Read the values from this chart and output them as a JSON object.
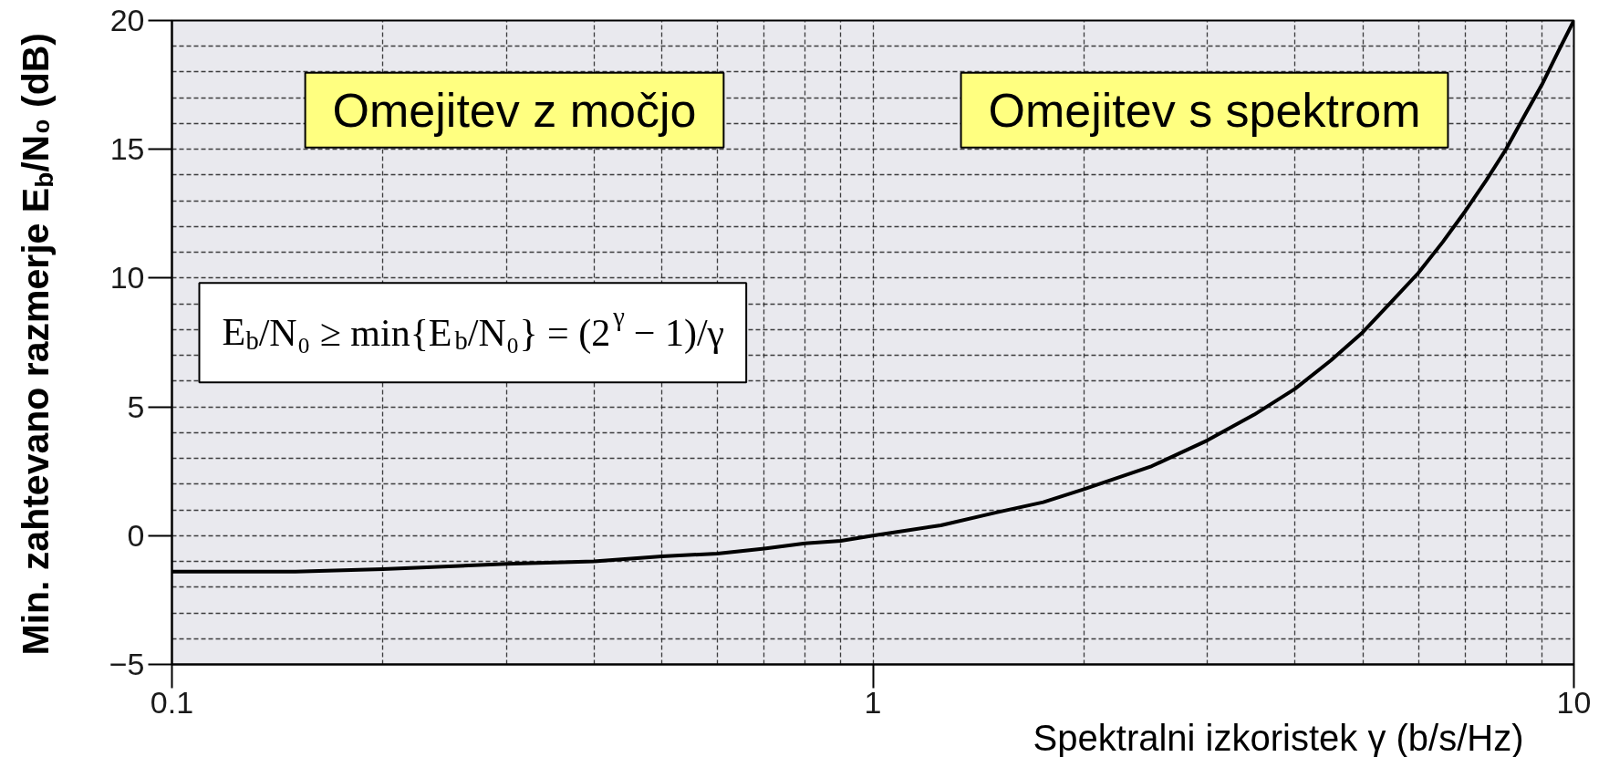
{
  "chart_data": {
    "type": "line",
    "xlabel": "Spektralni izkoristek γ (b/s/Hz)",
    "ylabel": "Min. zahtevano razmerje E$_{b}$/N₀ (dB)",
    "x": [
      0.1,
      0.15,
      0.2,
      0.3,
      0.4,
      0.5,
      0.6,
      0.7,
      0.8,
      0.9,
      1,
      1.25,
      1.5,
      1.75,
      2,
      2.5,
      3,
      3.5,
      4,
      4.5,
      5,
      5.5,
      6,
      6.5,
      7,
      7.5,
      8,
      8.5,
      9,
      9.5,
      10
    ],
    "series": [
      {
        "color": "#000000",
        "values": [
          -1.4,
          -1.4,
          -1.3,
          -1.1,
          -1.0,
          -0.8,
          -0.7,
          -0.5,
          -0.3,
          -0.2,
          0,
          0.4,
          0.9,
          1.3,
          1.8,
          2.7,
          3.7,
          4.7,
          5.7,
          6.8,
          7.9,
          9.1,
          10.2,
          11.4,
          12.6,
          13.8,
          15.0,
          16.3,
          17.5,
          18.8,
          20.0
        ]
      }
    ],
    "log": "x",
    "xlim": [
      0.1,
      10
    ],
    "xticks": [
      0.1,
      {
        "value": 0.2,
        "label": null
      },
      {
        "value": 0.3,
        "label": null
      },
      {
        "value": 0.4,
        "label": null
      },
      {
        "value": 0.5,
        "label": null
      },
      {
        "value": 0.6,
        "label": null
      },
      {
        "value": 0.7,
        "label": null
      },
      {
        "value": 0.8,
        "label": null
      },
      {
        "value": 0.9,
        "label": null
      },
      1,
      {
        "value": 2,
        "label": null
      },
      {
        "value": 3,
        "label": null
      },
      {
        "value": 4,
        "label": null
      },
      {
        "value": 5,
        "label": null
      },
      {
        "value": 6,
        "label": null
      },
      {
        "value": 7,
        "label": null
      },
      {
        "value": 8,
        "label": null
      },
      {
        "value": 9,
        "label": null
      },
      10
    ],
    "ylim": [
      -5,
      20
    ],
    "yticks": [
      {
        "value": -5,
        "label": "−5"
      },
      {
        "value": -4,
        "label": null
      },
      {
        "value": -3,
        "label": null
      },
      {
        "value": -2,
        "label": null
      },
      {
        "value": -1,
        "label": null
      },
      0,
      {
        "value": 1,
        "label": null
      },
      {
        "value": 2,
        "label": null
      },
      {
        "value": 3,
        "label": null
      },
      {
        "value": 4,
        "label": null
      },
      5,
      {
        "value": 6,
        "label": null
      },
      {
        "value": 7,
        "label": null
      },
      {
        "value": 8,
        "label": null
      },
      {
        "value": 9,
        "label": null
      },
      10,
      {
        "value": 11,
        "label": null
      },
      {
        "value": 12,
        "label": null
      },
      {
        "value": 13,
        "label": null
      },
      {
        "value": 14,
        "label": null
      },
      15,
      {
        "value": 16,
        "label": null
      },
      {
        "value": 17,
        "label": null
      },
      {
        "value": 18,
        "label": null
      },
      {
        "value": 19,
        "label": null
      },
      20
    ],
    "grid": true,
    "line_style": "solid",
    "annotations": [
      "Omejitev z močjo",
      "Omejitev s spektrom",
      "E$_{b}$/N₀ ≥ min{E$_{b}$/N₀} = (2$^{γ}$ − 1)/γ"
    ]
  }
}
